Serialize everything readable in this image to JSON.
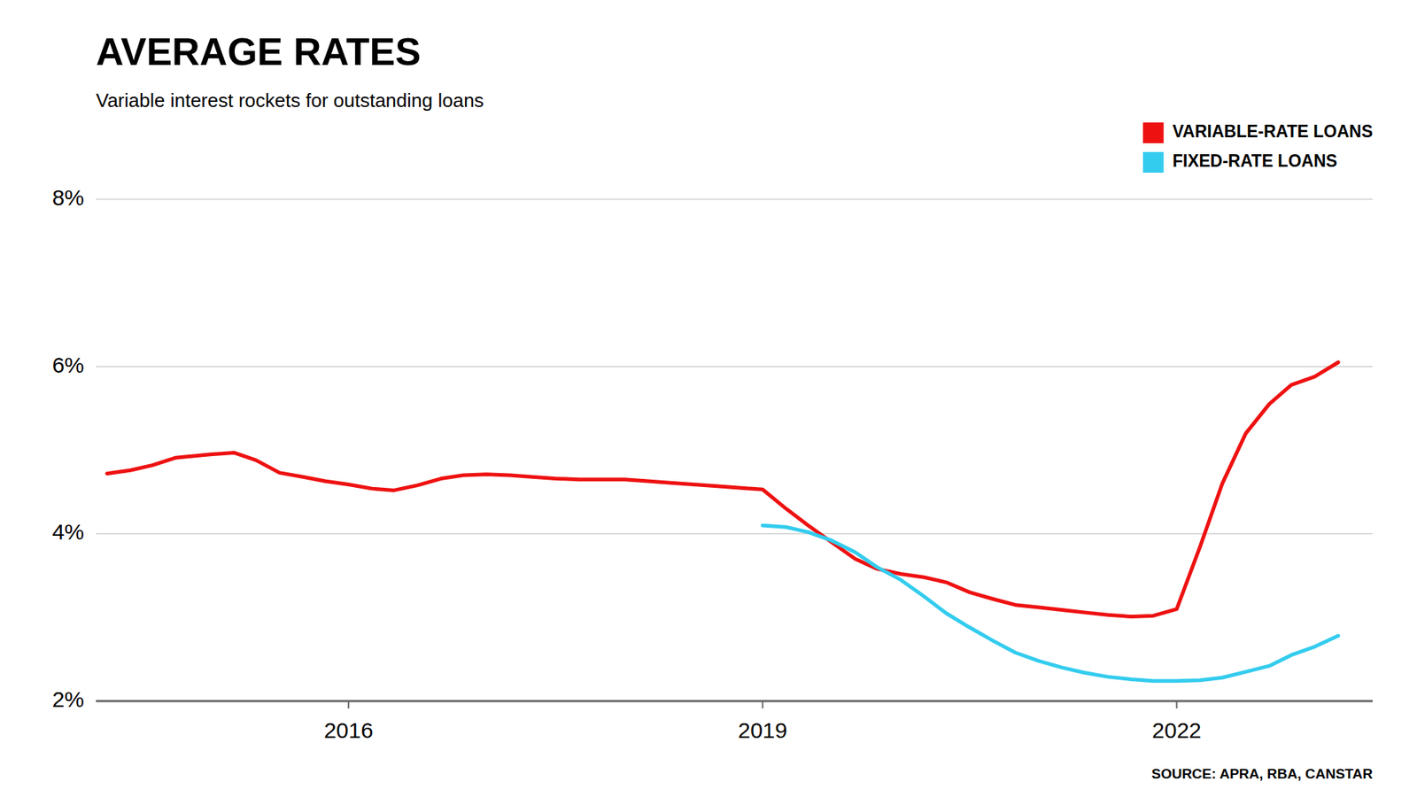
{
  "chart_data": {
    "type": "line",
    "title": "AVERAGE RATES",
    "subtitle": "Variable interest rockets for outstanding loans",
    "source": "SOURCE: APRA, RBA, CANSTAR",
    "xlim": [
      2014.17,
      2023.42
    ],
    "xticks": [
      2016,
      2019,
      2022
    ],
    "ylim": [
      2.0,
      8.0
    ],
    "yticks": [
      {
        "value": 2,
        "label": "2%"
      },
      {
        "value": 4,
        "label": "4%"
      },
      {
        "value": 6,
        "label": "6%"
      },
      {
        "value": 8,
        "label": "8%"
      }
    ],
    "grid": true,
    "legend": "top-right",
    "series": [
      {
        "name": "VARIABLE-RATE LOANS",
        "color": "#ee1111",
        "x": [
          2014.25,
          2014.42,
          2014.58,
          2014.75,
          2015.0,
          2015.17,
          2015.33,
          2015.5,
          2015.67,
          2015.83,
          2016.0,
          2016.17,
          2016.33,
          2016.5,
          2016.67,
          2016.83,
          2017.0,
          2017.17,
          2017.33,
          2017.5,
          2017.67,
          2017.83,
          2018.0,
          2018.17,
          2018.33,
          2018.5,
          2018.67,
          2018.83,
          2019.0,
          2019.17,
          2019.33,
          2019.5,
          2019.67,
          2019.83,
          2020.0,
          2020.17,
          2020.33,
          2020.5,
          2020.67,
          2020.83,
          2021.0,
          2021.17,
          2021.33,
          2021.5,
          2021.67,
          2021.83,
          2022.0,
          2022.17,
          2022.33,
          2022.5,
          2022.67,
          2022.83,
          2023.0,
          2023.17
        ],
        "values": [
          4.72,
          4.76,
          4.82,
          4.91,
          4.95,
          4.97,
          4.88,
          4.73,
          4.68,
          4.63,
          4.59,
          4.54,
          4.52,
          4.58,
          4.66,
          4.7,
          4.71,
          4.7,
          4.68,
          4.66,
          4.65,
          4.65,
          4.65,
          4.63,
          4.61,
          4.59,
          4.57,
          4.55,
          4.53,
          4.3,
          4.1,
          3.9,
          3.7,
          3.58,
          3.52,
          3.48,
          3.42,
          3.3,
          3.22,
          3.15,
          3.12,
          3.09,
          3.06,
          3.03,
          3.01,
          3.02,
          3.1,
          3.85,
          4.6,
          5.2,
          5.55,
          5.78,
          5.88,
          6.05
        ]
      },
      {
        "name": "FIXED-RATE LOANS",
        "color": "#33ccee",
        "x": [
          2019.0,
          2019.17,
          2019.33,
          2019.5,
          2019.67,
          2019.83,
          2020.0,
          2020.17,
          2020.33,
          2020.5,
          2020.67,
          2020.83,
          2021.0,
          2021.17,
          2021.33,
          2021.5,
          2021.67,
          2021.83,
          2022.0,
          2022.17,
          2022.33,
          2022.5,
          2022.67,
          2022.83,
          2023.0,
          2023.17
        ],
        "values": [
          4.1,
          4.08,
          4.02,
          3.92,
          3.78,
          3.6,
          3.45,
          3.25,
          3.05,
          2.88,
          2.72,
          2.58,
          2.48,
          2.4,
          2.34,
          2.29,
          2.26,
          2.24,
          2.24,
          2.25,
          2.28,
          2.35,
          2.42,
          2.55,
          2.65,
          2.78
        ]
      }
    ]
  }
}
